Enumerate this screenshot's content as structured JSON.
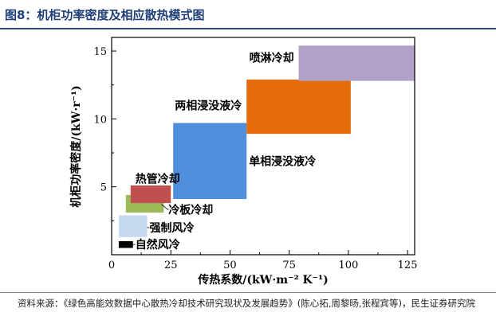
{
  "figure": {
    "title": "图8：机柜功率密度及相应散热模式图",
    "source": "资料来源：《绿色高能效数据中心散热冷却技术研究现状及发展趋势》(陈心拓,周黎旸,张程宾等)，民生证券研究院"
  },
  "chart_data": {
    "type": "range-box",
    "xlabel": "传热系数/(kW·m⁻² K⁻¹)",
    "ylabel": "机柜功率密度/(kW·r⁻¹)",
    "xlim": [
      0,
      128
    ],
    "ylim": [
      0,
      16
    ],
    "xticks": [
      0,
      25,
      50,
      75,
      100,
      125
    ],
    "yticks": [
      5,
      10,
      15
    ],
    "grid": false,
    "boxes": [
      {
        "name": "自然风冷",
        "x": [
          3,
          9
        ],
        "y": [
          0.5,
          1.0
        ],
        "color": "#000000"
      },
      {
        "name": "强制风冷",
        "x": [
          3,
          15
        ],
        "y": [
          1.3,
          2.9
        ],
        "color": "#c6d9f0"
      },
      {
        "name": "冷板冷却",
        "x": [
          6,
          22
        ],
        "y": [
          3.1,
          4.4
        ],
        "color": "#9bbb59"
      },
      {
        "name": "热管冷却",
        "x": [
          8,
          25
        ],
        "y": [
          3.8,
          5.1
        ],
        "color": "#c0504d"
      },
      {
        "name": "单相浸没液冷",
        "x": [
          26,
          57
        ],
        "y": [
          4.1,
          9.7
        ],
        "color": "#4f8fdb"
      },
      {
        "name": "两相浸没液冷",
        "x": [
          57,
          101
        ],
        "y": [
          8.9,
          12.9
        ],
        "color": "#e46c0a"
      },
      {
        "name": "喷淋冷却",
        "x": [
          79,
          130
        ],
        "y": [
          12.8,
          15.4
        ],
        "color": "#b1a0c7"
      }
    ]
  }
}
